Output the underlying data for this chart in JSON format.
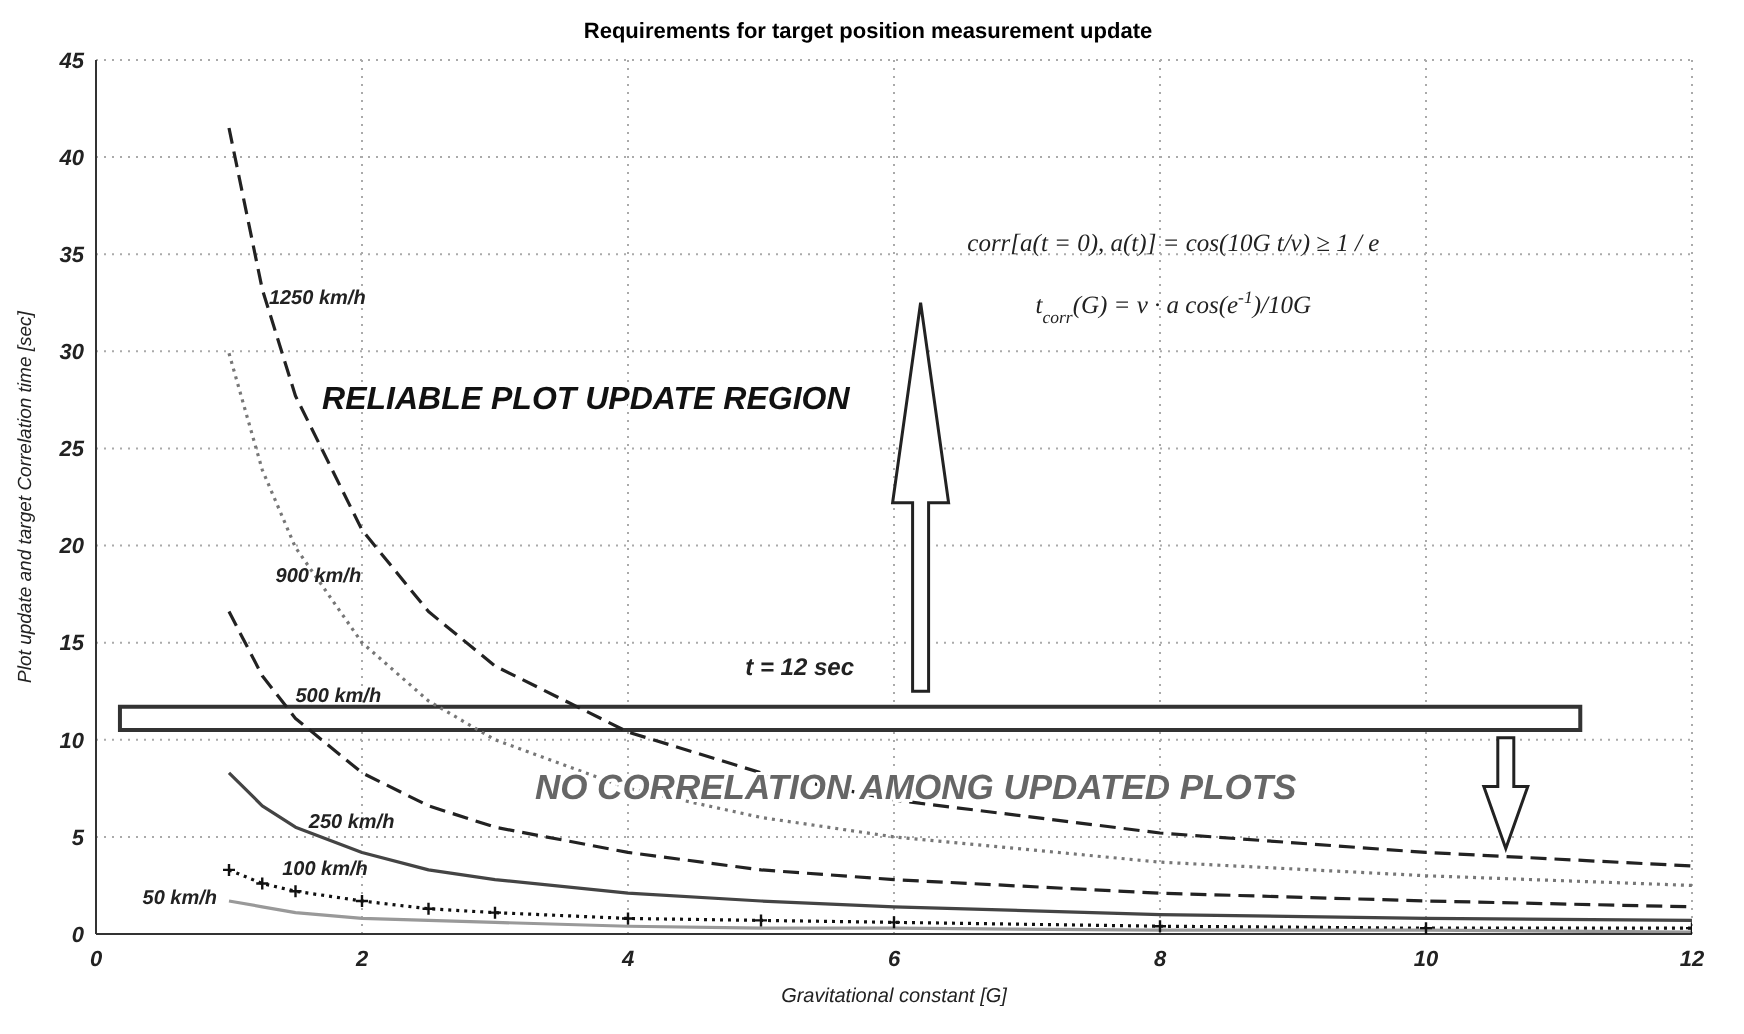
{
  "chart_data": {
    "type": "line",
    "title": "Requirements for target position measurement update",
    "xlabel": "Gravitational constant  [G]",
    "ylabel": "Plot update and target Correlation time [sec]",
    "x": [
      1,
      1.25,
      1.5,
      2,
      2.5,
      3,
      4,
      5,
      6,
      8,
      10,
      12
    ],
    "series": [
      {
        "color": "#222222",
        "line_style": "dashed",
        "values": [
          41.5,
          33.2,
          27.7,
          20.8,
          16.6,
          13.8,
          10.4,
          8.3,
          6.9,
          5.2,
          4.2,
          3.5
        ]
      },
      {
        "color": "#777777",
        "line_style": "dotted",
        "values": [
          29.9,
          23.9,
          19.9,
          15.0,
          12.0,
          10.0,
          7.5,
          6.0,
          5.0,
          3.7,
          3.0,
          2.5
        ]
      },
      {
        "color": "#222222",
        "line_style": "dashed",
        "values": [
          16.6,
          13.3,
          11.1,
          8.3,
          6.6,
          5.5,
          4.2,
          3.3,
          2.8,
          2.1,
          1.7,
          1.4
        ]
      },
      {
        "color": "#444444",
        "line_style": "solid",
        "values": [
          8.3,
          6.6,
          5.5,
          4.2,
          3.3,
          2.8,
          2.1,
          1.7,
          1.4,
          1.0,
          0.8,
          0.7
        ]
      },
      {
        "color": "#111111",
        "line_style": "dotted",
        "marker": "cross",
        "values": [
          3.3,
          2.6,
          2.2,
          1.7,
          1.3,
          1.1,
          0.8,
          0.7,
          0.6,
          0.4,
          0.3,
          0.3
        ]
      },
      {
        "color": "#999999",
        "line_style": "solid",
        "values": [
          1.7,
          1.4,
          1.1,
          0.8,
          0.7,
          0.6,
          0.4,
          0.3,
          0.3,
          0.2,
          0.2,
          0.1
        ]
      }
    ],
    "xlim": [
      0,
      12
    ],
    "xticks": [
      0,
      2,
      4,
      6,
      8,
      10,
      12
    ],
    "ylim": [
      0,
      45
    ],
    "yticks": [
      0,
      5,
      10,
      15,
      20,
      25,
      30,
      35,
      40,
      45
    ],
    "grid": true,
    "marker": "none",
    "bands": [
      {
        "axis": "y",
        "from": 10.5,
        "to": 11.7,
        "label": "t = 12 sec"
      }
    ],
    "annotations": [
      "1250 km/h",
      "900 km/h",
      "500 km/h",
      "250 km/h",
      "100 km/h",
      "50 km/h",
      "corr[a(t = 0), a(t)] = cos(10G t/v) ≥ 1 / e",
      "t$_{corr}$(G) = v · a cos(e$^{-1}$)/10G",
      "RELIABLE PLOT UPDATE REGION",
      "NO CORRELATION AMONG UPDATED PLOTS"
    ]
  }
}
